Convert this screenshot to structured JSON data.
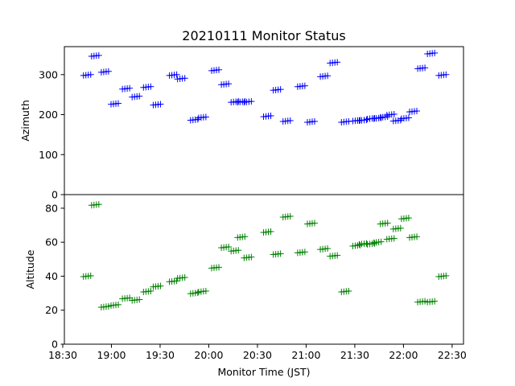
{
  "chart_data": {
    "type": "scatter",
    "title": "20210111 Monitor Status",
    "xlabel": "Monitor Time (JST)",
    "x_ticks": [
      "18:30",
      "19:00",
      "19:30",
      "20:00",
      "20:30",
      "21:00",
      "21:30",
      "22:00",
      "22:30"
    ],
    "x_range": [
      "18:31",
      "22:37"
    ],
    "marker": "plus-cluster (4 sub-marks per pointing)",
    "grid": false,
    "x": [
      "18:45",
      "18:50",
      "18:56",
      "19:02",
      "19:09",
      "19:15",
      "19:22",
      "19:28",
      "19:38",
      "19:43",
      "19:51",
      "19:56",
      "20:04",
      "20:10",
      "20:16",
      "20:20",
      "20:24",
      "20:36",
      "20:42",
      "20:48",
      "20:57",
      "21:03",
      "21:11",
      "21:17",
      "21:24",
      "21:31",
      "21:35",
      "21:40",
      "21:44",
      "21:48",
      "21:52",
      "21:56",
      "22:01",
      "22:06",
      "22:11",
      "22:17",
      "22:24"
    ],
    "series": [
      {
        "axis": "top",
        "ylabel": "Azimuth",
        "ylim": [
          0,
          370
        ],
        "y_ticks": [
          0,
          100,
          200,
          300
        ],
        "color": "#0000ff",
        "values": [
          299,
          347,
          307,
          227,
          265,
          245,
          269,
          225,
          299,
          290,
          187,
          193,
          311,
          276,
          232,
          232,
          232,
          196,
          262,
          184,
          271,
          182,
          296,
          330,
          182,
          185,
          186,
          190,
          191,
          194,
          200,
          185,
          191,
          208,
          316,
          353,
          299
        ]
      },
      {
        "axis": "bottom",
        "ylabel": "Altitude",
        "ylim": [
          0,
          88
        ],
        "y_ticks": [
          0,
          20,
          40,
          60,
          80
        ],
        "color": "#008000",
        "values": [
          40,
          82,
          22,
          23,
          27,
          26,
          31,
          34,
          37,
          39,
          30,
          31,
          45,
          57,
          55,
          63,
          51,
          66,
          53,
          75,
          54,
          71,
          56,
          52,
          31,
          58,
          59,
          59,
          60,
          71,
          62,
          68,
          74,
          63,
          25,
          25,
          40
        ]
      }
    ]
  }
}
